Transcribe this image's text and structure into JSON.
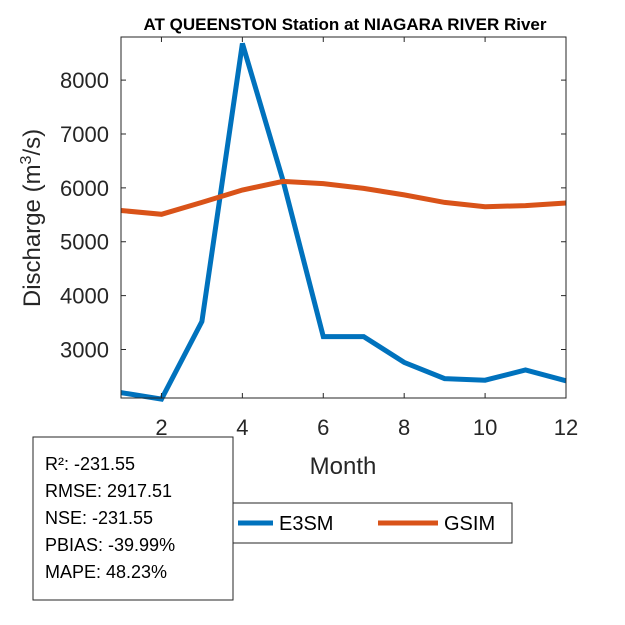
{
  "chart_data": {
    "type": "line",
    "title": "AT QUEENSTON  Station at  NIAGARA RIVER  River",
    "xlabel": "Month",
    "ylabel_prefix": "Discharge (m",
    "ylabel_sup": "3",
    "ylabel_suffix": "/s)",
    "xlim": [
      1,
      12
    ],
    "ylim": [
      2100,
      8800
    ],
    "xticks": [
      2,
      4,
      6,
      8,
      10,
      12
    ],
    "yticks": [
      3000,
      4000,
      5000,
      6000,
      7000,
      8000
    ],
    "x": [
      1,
      2,
      3,
      4,
      5,
      6,
      7,
      8,
      9,
      10,
      11,
      12
    ],
    "series": [
      {
        "name": "E3SM",
        "color": "#0072BD",
        "values": [
          2200,
          2080,
          3520,
          8680,
          6150,
          3240,
          3240,
          2760,
          2460,
          2430,
          2620,
          2420
        ]
      },
      {
        "name": "GSIM",
        "color": "#D95319",
        "values": [
          5580,
          5510,
          5730,
          5960,
          6120,
          6080,
          5990,
          5870,
          5730,
          5650,
          5670,
          5720
        ]
      }
    ],
    "legend": {
      "position": "bottom",
      "entries": [
        "E3SM",
        "GSIM"
      ]
    }
  },
  "stats": {
    "r2": "R²: -231.55",
    "rmse": "RMSE: 2917.51",
    "nse": "NSE: -231.55",
    "pbias": "PBIAS: -39.99%",
    "mape": "MAPE: 48.23%"
  }
}
